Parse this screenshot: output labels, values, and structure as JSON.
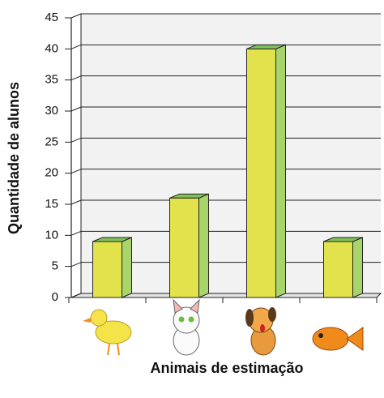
{
  "chart_data": {
    "type": "bar3d",
    "x_label": "Animais de estimação",
    "y_label": "Quantidade de alunos",
    "categories": [
      null,
      null,
      null,
      null
    ],
    "values": [
      9,
      16,
      40,
      9
    ],
    "color": "#e2e34c",
    "ylim": [
      0,
      45
    ],
    "yticks": [
      0,
      5,
      10,
      15,
      20,
      25,
      30,
      35,
      40,
      45
    ],
    "grid": true
  }
}
